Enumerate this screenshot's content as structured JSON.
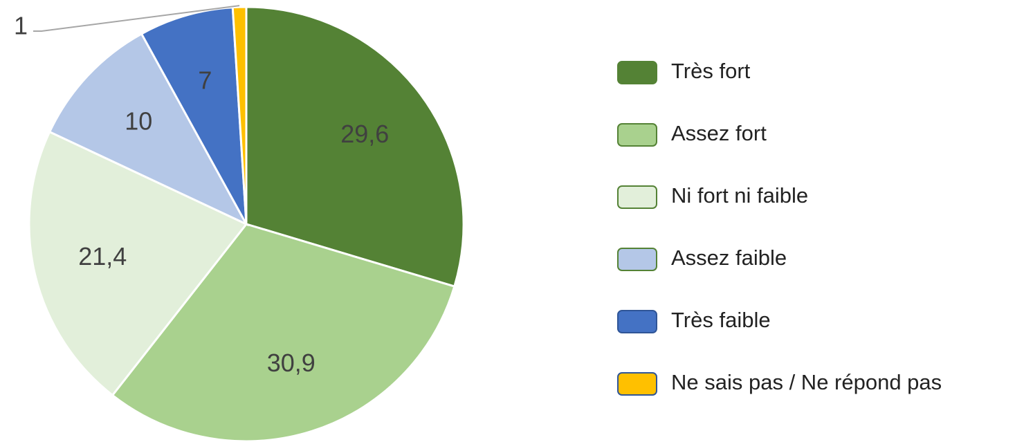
{
  "chart_data": {
    "type": "pie",
    "categories": [
      "Très fort",
      "Assez fort",
      "Ni fort ni faible",
      "Assez faible",
      "Très faible",
      "Ne sais pas / Ne répond pas"
    ],
    "values": [
      29.6,
      30.9,
      21.4,
      10,
      7,
      1
    ],
    "value_labels": [
      "29,6",
      "30,9",
      "21,4",
      "10",
      "7",
      "1"
    ],
    "colors": [
      "#548235",
      "#a9d18e",
      "#e2efda",
      "#b4c7e7",
      "#4472c4",
      "#ffc000"
    ],
    "legend": "right"
  }
}
